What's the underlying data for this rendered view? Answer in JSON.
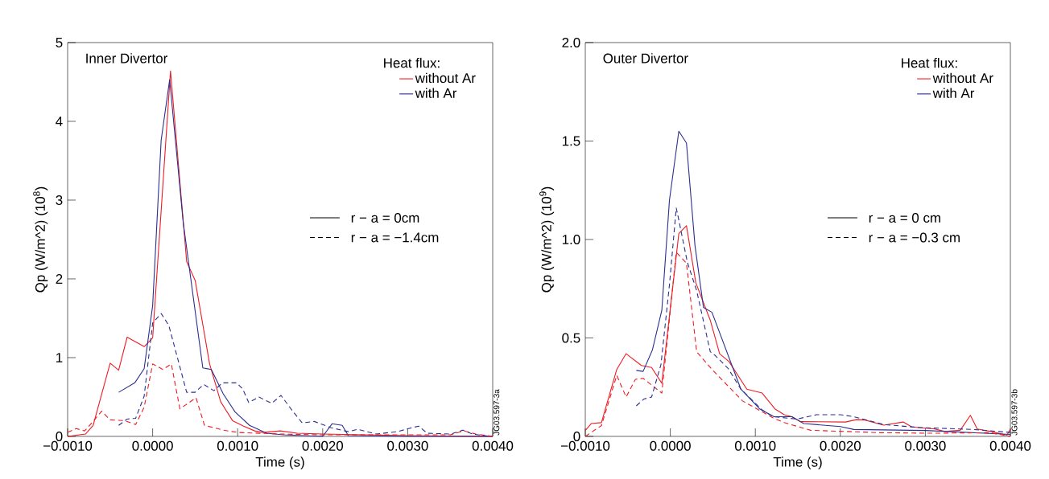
{
  "chart_data": [
    {
      "type": "line",
      "title": "Inner Divertor",
      "xlabel": "Time (s)",
      "ylabel": "Qp (W/m^2) (10$^{8}$)",
      "legend_title": "Heat flux:",
      "legend": "top right",
      "grid": false,
      "marker": "none",
      "xlim": [
        -0.001,
        0.004
      ],
      "xticks": [
        {
          "value": -0.001,
          "label": "−0.0010"
        },
        {
          "value": 0,
          "label": "0.0000"
        },
        {
          "value": 0.001,
          "label": "0.0010"
        },
        {
          "value": 0.002,
          "label": "0.0020"
        },
        {
          "value": 0.003,
          "label": "0.0030"
        },
        {
          "value": 0.004,
          "label": "0.0040"
        }
      ],
      "ylim": [
        0,
        5
      ],
      "yticks": [
        0,
        1,
        2,
        3,
        4,
        5
      ],
      "annotations": [
        "r − a = 0cm",
        "r − a = −1.4cm",
        "JG03.597-3a"
      ],
      "series": [
        {
          "name": "without Ar",
          "color": "#ee1c25",
          "line_style": "solid",
          "x": [
            -0.001,
            -0.00079,
            -0.0007,
            -0.0005,
            -0.0004,
            -0.0003,
            -0.0001,
            0.0,
            0.00021,
            0.0004,
            0.0005,
            0.00067,
            0.0008,
            0.00094,
            0.00107,
            0.0012,
            0.0013,
            0.0015,
            0.0017,
            0.002,
            0.003,
            0.004
          ],
          "values": [
            0.0,
            0.03,
            0.14,
            0.93,
            0.84,
            1.26,
            1.14,
            1.25,
            4.64,
            2.22,
            1.98,
            0.92,
            0.44,
            0.2,
            0.13,
            0.07,
            0.05,
            0.07,
            0.04,
            0.03,
            0.01,
            0.0
          ]
        },
        {
          "name": "with Ar",
          "color": "#2b2f8f",
          "line_style": "solid",
          "x": [
            -0.0004,
            -0.00021,
            -0.0001,
            0.0,
            0.0001,
            0.0002,
            0.00036,
            0.00059,
            0.00069,
            0.00083,
            0.00097,
            0.00114,
            0.00134,
            0.00154,
            0.002,
            0.00211,
            0.00223,
            0.0023,
            0.003,
            0.004
          ],
          "values": [
            0.56,
            0.68,
            0.86,
            1.66,
            3.76,
            4.53,
            2.71,
            0.87,
            0.85,
            0.54,
            0.31,
            0.14,
            0.04,
            0.02,
            0.0,
            0.16,
            0.14,
            0.01,
            0.0,
            0.0
          ]
        },
        {
          "color": "#ee1c25",
          "line_style": "dashed",
          "x": [
            -0.001,
            -0.0009,
            -0.0008,
            -0.0007,
            -0.0006,
            -0.0005,
            -0.00033,
            -0.0002,
            -0.0001,
            0.0,
            0.00012,
            0.00022,
            0.00032,
            0.00051,
            0.00061,
            0.00083,
            0.001,
            0.0015,
            0.002,
            0.003,
            0.0035,
            0.00366,
            0.0038,
            0.004
          ],
          "values": [
            0.05,
            0.1,
            0.07,
            0.19,
            0.32,
            0.21,
            0.2,
            0.15,
            0.37,
            0.92,
            0.85,
            0.92,
            0.35,
            0.49,
            0.14,
            0.08,
            0.05,
            0.03,
            0.02,
            0.02,
            0.02,
            0.07,
            0.03,
            0.0
          ]
        },
        {
          "color": "#2b2f8f",
          "line_style": "dashed",
          "x": [
            -0.0004,
            -0.0003,
            -0.0002,
            -0.0001,
            0.0,
            0.0001,
            0.00019,
            0.0004,
            0.0005,
            0.0006,
            0.00072,
            0.00082,
            0.00099,
            0.00106,
            0.00113,
            0.00125,
            0.0014,
            0.00151,
            0.00164,
            0.00176,
            0.0019,
            0.0021,
            0.0023,
            0.00241,
            0.00263,
            0.00288,
            0.00301,
            0.00313,
            0.00323,
            0.00351,
            0.00365,
            0.00376,
            0.00398
          ],
          "values": [
            0.14,
            0.22,
            0.23,
            0.51,
            1.44,
            1.56,
            1.41,
            0.56,
            0.56,
            0.66,
            0.58,
            0.68,
            0.68,
            0.6,
            0.43,
            0.5,
            0.42,
            0.52,
            0.33,
            0.17,
            0.19,
            0.11,
            0.06,
            0.09,
            0.03,
            0.06,
            0.1,
            0.13,
            0.04,
            0.03,
            0.08,
            0.03,
            0.0
          ]
        }
      ]
    },
    {
      "type": "line",
      "title": "Outer Divertor",
      "xlabel": "Time (s)",
      "ylabel": "Qp (W/m^2) (10$^{9}$)",
      "legend_title": "Heat flux:",
      "legend": "top right",
      "grid": false,
      "marker": "none",
      "xlim": [
        -0.001,
        0.004
      ],
      "xticks": [
        {
          "value": -0.001,
          "label": "−0.0010"
        },
        {
          "value": 0,
          "label": "0.0000"
        },
        {
          "value": 0.001,
          "label": "0.0010"
        },
        {
          "value": 0.002,
          "label": "0.0020"
        },
        {
          "value": 0.003,
          "label": "0.0030"
        },
        {
          "value": 0.004,
          "label": "0.0040"
        }
      ],
      "ylim": [
        0,
        2
      ],
      "yticks": [
        0,
        0.5,
        {
          "value": 1,
          "label": "1.0"
        },
        1.5,
        {
          "value": 2,
          "label": "2.0"
        }
      ],
      "annotations": [
        "r − a = 0 cm",
        "r − a = −0.3 cm",
        "JG03.597-3b"
      ],
      "series": [
        {
          "name": "without Ar",
          "color": "#ee1c25",
          "line_style": "solid",
          "x": [
            -0.001,
            -0.00093,
            -0.00081,
            -0.00063,
            -0.00052,
            -0.00034,
            -0.00022,
            -0.0001,
            0.0001,
            0.00019,
            0.0003,
            0.00047,
            0.00058,
            0.00069,
            0.0009,
            0.00108,
            0.00123,
            0.00134,
            0.00143,
            0.00153,
            0.00206,
            0.00219,
            0.00229,
            0.00251,
            0.00274,
            0.00284,
            0.00311,
            0.00323,
            0.00341,
            0.00353,
            0.00361,
            0.00377,
            0.00396,
            0.004
          ],
          "values": [
            0.03,
            0.065,
            0.07,
            0.34,
            0.42,
            0.36,
            0.35,
            0.27,
            1.03,
            1.07,
            0.78,
            0.59,
            0.42,
            0.38,
            0.24,
            0.22,
            0.14,
            0.11,
            0.1,
            0.075,
            0.073,
            0.085,
            0.083,
            0.057,
            0.073,
            0.048,
            0.038,
            0.025,
            0.031,
            0.107,
            0.038,
            0.025,
            0.006,
            0.038
          ]
        },
        {
          "name": "with Ar",
          "color": "#2b2f8f",
          "line_style": "solid",
          "x": [
            -0.0004,
            -0.00032,
            -0.00021,
            -0.0001,
            -1e-05,
            0.0001,
            0.00019,
            0.00029,
            0.00039,
            0.00049,
            0.00083,
            0.00105,
            0.00122,
            0.00143,
            0.00157,
            0.002,
            0.00216,
            0.003,
            0.004
          ],
          "values": [
            0.335,
            0.33,
            0.44,
            0.64,
            1.2,
            1.55,
            1.49,
            0.97,
            0.655,
            0.63,
            0.24,
            0.14,
            0.1,
            0.1,
            0.065,
            0.05,
            0.035,
            0.03,
            0.01
          ]
        },
        {
          "color": "#ee1c25",
          "line_style": "dashed",
          "x": [
            -0.001,
            -0.00081,
            -0.00063,
            -0.00052,
            -0.00041,
            -0.00032,
            -0.0001,
            7e-05,
            0.00019,
            0.00031,
            0.00049,
            0.00085,
            0.00121,
            0.00134,
            0.00165,
            0.002,
            0.00244,
            0.00309,
            0.00376,
            0.004
          ],
          "values": [
            0.0,
            0.055,
            0.31,
            0.2,
            0.29,
            0.295,
            0.22,
            0.935,
            0.88,
            0.43,
            0.34,
            0.18,
            0.094,
            0.07,
            0.031,
            0.026,
            0.019,
            0.016,
            0.019,
            0.0
          ]
        },
        {
          "color": "#2b2f8f",
          "line_style": "dashed",
          "x": [
            -0.0004,
            -0.00031,
            -0.00022,
            -0.00011,
            -1e-05,
            7e-05,
            9e-05,
            0.0002,
            0.00031,
            0.00047,
            0.00053,
            0.00068,
            0.00083,
            0.00108,
            0.00121,
            0.00149,
            0.00172,
            0.002,
            0.00216,
            0.00251,
            0.00294,
            0.00357,
            0.004
          ],
          "values": [
            0.155,
            0.19,
            0.2,
            0.365,
            0.77,
            1.16,
            1.12,
            0.885,
            0.74,
            0.43,
            0.41,
            0.345,
            0.24,
            0.135,
            0.1,
            0.088,
            0.11,
            0.11,
            0.1,
            0.06,
            0.045,
            0.035,
            0.02
          ]
        }
      ]
    }
  ]
}
